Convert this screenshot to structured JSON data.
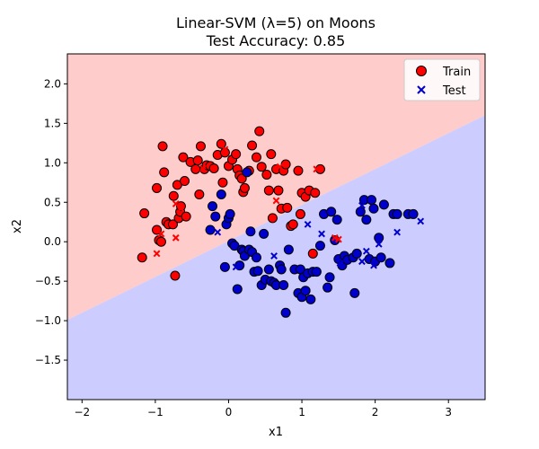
{
  "chart_data": {
    "type": "scatter",
    "title_line1": "Linear-SVM (λ=5) on Moons",
    "title_line2": "Test Accuracy: 0.85",
    "xlabel": "x1",
    "ylabel": "x2",
    "xlim": [
      -2.2,
      3.5
    ],
    "ylim": [
      -2.0,
      2.38
    ],
    "xticks": [
      -2,
      -1,
      0,
      1,
      2,
      3
    ],
    "yticks": [
      -1.5,
      -1.0,
      -0.5,
      0.0,
      0.5,
      1.0,
      1.5,
      2.0
    ],
    "xtick_labels": [
      "−2",
      "−1",
      "0",
      "1",
      "2",
      "3"
    ],
    "ytick_labels": [
      "−1.5",
      "−1.0",
      "−0.5",
      "0.0",
      "0.5",
      "1.0",
      "1.5",
      "2.0"
    ],
    "decision_boundary": {
      "slope": 0.455,
      "intercept": 0.01
    },
    "region_colors": {
      "class0": "#ffcccc",
      "class1": "#ccccff"
    },
    "grid": false,
    "legend": {
      "placement": "top-right",
      "entries": [
        {
          "label": "Train",
          "marker": "circle"
        },
        {
          "label": "Test",
          "marker": "x"
        }
      ]
    },
    "series": [
      {
        "name": "Train",
        "marker": "circle",
        "class0_color": "#ff0000",
        "class1_color": "#0000cc",
        "points": [
          {
            "x": -1.18,
            "y": -0.2,
            "c": 0
          },
          {
            "x": -1.15,
            "y": 0.36,
            "c": 0
          },
          {
            "x": -0.98,
            "y": 0.68,
            "c": 0
          },
          {
            "x": -0.98,
            "y": 0.15,
            "c": 0
          },
          {
            "x": -0.95,
            "y": 0.02,
            "c": 0
          },
          {
            "x": -0.92,
            "y": 0.0,
            "c": 0
          },
          {
            "x": -0.9,
            "y": 1.21,
            "c": 0
          },
          {
            "x": -0.88,
            "y": 0.88,
            "c": 0
          },
          {
            "x": -0.85,
            "y": 0.25,
            "c": 0
          },
          {
            "x": -0.82,
            "y": 0.22,
            "c": 0
          },
          {
            "x": -0.76,
            "y": 0.22,
            "c": 0
          },
          {
            "x": -0.75,
            "y": 0.58,
            "c": 0
          },
          {
            "x": -0.73,
            "y": -0.43,
            "c": 0
          },
          {
            "x": -0.7,
            "y": 0.72,
            "c": 0
          },
          {
            "x": -0.68,
            "y": 0.3,
            "c": 0
          },
          {
            "x": -0.66,
            "y": 0.38,
            "c": 0
          },
          {
            "x": -0.65,
            "y": 0.45,
            "c": 0
          },
          {
            "x": -0.62,
            "y": 1.07,
            "c": 0
          },
          {
            "x": -0.6,
            "y": 0.77,
            "c": 0
          },
          {
            "x": -0.58,
            "y": 0.32,
            "c": 0
          },
          {
            "x": -0.52,
            "y": 1.01,
            "c": 0
          },
          {
            "x": -0.45,
            "y": 0.92,
            "c": 0
          },
          {
            "x": -0.42,
            "y": 1.03,
            "c": 0
          },
          {
            "x": -0.4,
            "y": 0.6,
            "c": 0
          },
          {
            "x": -0.38,
            "y": 1.21,
            "c": 0
          },
          {
            "x": -0.33,
            "y": 0.92,
            "c": 0
          },
          {
            "x": -0.3,
            "y": 0.97,
            "c": 0
          },
          {
            "x": -0.25,
            "y": 0.96,
            "c": 0
          },
          {
            "x": -0.2,
            "y": 0.93,
            "c": 0
          },
          {
            "x": -0.15,
            "y": 1.1,
            "c": 0
          },
          {
            "x": -0.1,
            "y": 1.24,
            "c": 0
          },
          {
            "x": -0.08,
            "y": 0.75,
            "c": 0
          },
          {
            "x": -0.05,
            "y": 1.13,
            "c": 0
          },
          {
            "x": 0.0,
            "y": 0.96,
            "c": 0
          },
          {
            "x": 0.05,
            "y": 1.04,
            "c": 0
          },
          {
            "x": 0.1,
            "y": 1.11,
            "c": 0
          },
          {
            "x": 0.12,
            "y": 0.92,
            "c": 0
          },
          {
            "x": 0.15,
            "y": 0.84,
            "c": 0
          },
          {
            "x": 0.18,
            "y": 0.8,
            "c": 0
          },
          {
            "x": 0.2,
            "y": 0.63,
            "c": 0
          },
          {
            "x": 0.22,
            "y": 0.68,
            "c": 0
          },
          {
            "x": 0.28,
            "y": 0.9,
            "c": 0
          },
          {
            "x": 0.32,
            "y": 1.22,
            "c": 0
          },
          {
            "x": 0.38,
            "y": 1.07,
            "c": 0
          },
          {
            "x": 0.42,
            "y": 1.4,
            "c": 0
          },
          {
            "x": 0.45,
            "y": 0.95,
            "c": 0
          },
          {
            "x": 0.52,
            "y": 0.85,
            "c": 0
          },
          {
            "x": 0.55,
            "y": 0.65,
            "c": 0
          },
          {
            "x": 0.58,
            "y": 1.11,
            "c": 0
          },
          {
            "x": 0.6,
            "y": 0.3,
            "c": 0
          },
          {
            "x": 0.65,
            "y": 0.92,
            "c": 0
          },
          {
            "x": 0.68,
            "y": 0.65,
            "c": 0
          },
          {
            "x": 0.72,
            "y": 0.42,
            "c": 0
          },
          {
            "x": 0.75,
            "y": 0.9,
            "c": 0
          },
          {
            "x": 0.78,
            "y": 0.98,
            "c": 0
          },
          {
            "x": 0.8,
            "y": 0.43,
            "c": 0
          },
          {
            "x": 0.85,
            "y": 0.2,
            "c": 0
          },
          {
            "x": 0.88,
            "y": 0.22,
            "c": 0
          },
          {
            "x": 0.95,
            "y": 0.9,
            "c": 0
          },
          {
            "x": 0.98,
            "y": 0.35,
            "c": 0
          },
          {
            "x": 1.0,
            "y": 0.62,
            "c": 0
          },
          {
            "x": 1.05,
            "y": 0.57,
            "c": 0
          },
          {
            "x": 1.1,
            "y": 0.65,
            "c": 0
          },
          {
            "x": 1.15,
            "y": -0.15,
            "c": 0
          },
          {
            "x": 1.18,
            "y": 0.62,
            "c": 0
          },
          {
            "x": 1.25,
            "y": 0.92,
            "c": 0
          },
          {
            "x": -0.25,
            "y": 0.15,
            "c": 1
          },
          {
            "x": -0.22,
            "y": 0.45,
            "c": 1
          },
          {
            "x": -0.18,
            "y": 0.32,
            "c": 1
          },
          {
            "x": -0.1,
            "y": 0.6,
            "c": 1
          },
          {
            "x": -0.05,
            "y": -0.32,
            "c": 1
          },
          {
            "x": -0.03,
            "y": 0.22,
            "c": 1
          },
          {
            "x": 0.0,
            "y": 0.3,
            "c": 1
          },
          {
            "x": 0.02,
            "y": 0.35,
            "c": 1
          },
          {
            "x": 0.05,
            "y": -0.02,
            "c": 1
          },
          {
            "x": 0.08,
            "y": -0.05,
            "c": 1
          },
          {
            "x": 0.12,
            "y": -0.6,
            "c": 1
          },
          {
            "x": 0.15,
            "y": -0.3,
            "c": 1
          },
          {
            "x": 0.18,
            "y": -0.1,
            "c": 1
          },
          {
            "x": 0.2,
            "y": -0.12,
            "c": 1
          },
          {
            "x": 0.22,
            "y": -0.18,
            "c": 1
          },
          {
            "x": 0.25,
            "y": 0.88,
            "c": 1
          },
          {
            "x": 0.28,
            "y": -0.1,
            "c": 1
          },
          {
            "x": 0.3,
            "y": 0.13,
            "c": 1
          },
          {
            "x": 0.32,
            "y": -0.13,
            "c": 1
          },
          {
            "x": 0.35,
            "y": -0.38,
            "c": 1
          },
          {
            "x": 0.38,
            "y": -0.2,
            "c": 1
          },
          {
            "x": 0.4,
            "y": -0.37,
            "c": 1
          },
          {
            "x": 0.45,
            "y": -0.55,
            "c": 1
          },
          {
            "x": 0.48,
            "y": 0.1,
            "c": 1
          },
          {
            "x": 0.5,
            "y": -0.48,
            "c": 1
          },
          {
            "x": 0.55,
            "y": -0.35,
            "c": 1
          },
          {
            "x": 0.58,
            "y": -0.5,
            "c": 1
          },
          {
            "x": 0.62,
            "y": -0.52,
            "c": 1
          },
          {
            "x": 0.65,
            "y": -0.55,
            "c": 1
          },
          {
            "x": 0.7,
            "y": -0.3,
            "c": 1
          },
          {
            "x": 0.72,
            "y": -0.35,
            "c": 1
          },
          {
            "x": 0.75,
            "y": -0.55,
            "c": 1
          },
          {
            "x": 0.78,
            "y": -0.9,
            "c": 1
          },
          {
            "x": 0.82,
            "y": -0.1,
            "c": 1
          },
          {
            "x": 0.9,
            "y": -0.35,
            "c": 1
          },
          {
            "x": 0.95,
            "y": -0.65,
            "c": 1
          },
          {
            "x": 0.98,
            "y": -0.35,
            "c": 1
          },
          {
            "x": 1.0,
            "y": -0.7,
            "c": 1
          },
          {
            "x": 1.02,
            "y": -0.45,
            "c": 1
          },
          {
            "x": 1.05,
            "y": -0.62,
            "c": 1
          },
          {
            "x": 1.08,
            "y": -0.4,
            "c": 1
          },
          {
            "x": 1.12,
            "y": -0.73,
            "c": 1
          },
          {
            "x": 1.15,
            "y": -0.38,
            "c": 1
          },
          {
            "x": 1.2,
            "y": -0.38,
            "c": 1
          },
          {
            "x": 1.25,
            "y": -0.05,
            "c": 1
          },
          {
            "x": 1.3,
            "y": 0.35,
            "c": 1
          },
          {
            "x": 1.35,
            "y": -0.58,
            "c": 1
          },
          {
            "x": 1.38,
            "y": -0.45,
            "c": 1
          },
          {
            "x": 1.4,
            "y": 0.38,
            "c": 1
          },
          {
            "x": 1.45,
            "y": 0.02,
            "c": 1
          },
          {
            "x": 1.48,
            "y": 0.28,
            "c": 1
          },
          {
            "x": 1.5,
            "y": -0.22,
            "c": 1
          },
          {
            "x": 1.55,
            "y": -0.3,
            "c": 1
          },
          {
            "x": 1.58,
            "y": -0.18,
            "c": 1
          },
          {
            "x": 1.62,
            "y": -0.23,
            "c": 1
          },
          {
            "x": 1.7,
            "y": -0.2,
            "c": 1
          },
          {
            "x": 1.72,
            "y": -0.65,
            "c": 1
          },
          {
            "x": 1.75,
            "y": -0.15,
            "c": 1
          },
          {
            "x": 1.8,
            "y": 0.38,
            "c": 1
          },
          {
            "x": 1.85,
            "y": 0.53,
            "c": 1
          },
          {
            "x": 1.88,
            "y": 0.28,
            "c": 1
          },
          {
            "x": 1.92,
            "y": -0.22,
            "c": 1
          },
          {
            "x": 1.95,
            "y": 0.53,
            "c": 1
          },
          {
            "x": 1.98,
            "y": 0.42,
            "c": 1
          },
          {
            "x": 2.0,
            "y": -0.25,
            "c": 1
          },
          {
            "x": 2.05,
            "y": 0.05,
            "c": 1
          },
          {
            "x": 2.08,
            "y": -0.2,
            "c": 1
          },
          {
            "x": 2.12,
            "y": 0.47,
            "c": 1
          },
          {
            "x": 2.2,
            "y": -0.27,
            "c": 1
          },
          {
            "x": 2.25,
            "y": 0.35,
            "c": 1
          },
          {
            "x": 2.3,
            "y": 0.35,
            "c": 1
          },
          {
            "x": 2.45,
            "y": 0.35,
            "c": 1
          },
          {
            "x": 2.52,
            "y": 0.35,
            "c": 1
          }
        ]
      },
      {
        "name": "Test",
        "marker": "x",
        "class0_color": "#ff0000",
        "class1_color": "#0000cc",
        "points": [
          {
            "x": -0.98,
            "y": -0.15,
            "c": 0
          },
          {
            "x": -0.92,
            "y": 0.1,
            "c": 0
          },
          {
            "x": -0.72,
            "y": 0.05,
            "c": 0
          },
          {
            "x": -0.72,
            "y": 0.48,
            "c": 0
          },
          {
            "x": -0.65,
            "y": 0.42,
            "c": 0
          },
          {
            "x": -0.35,
            "y": 0.93,
            "c": 0
          },
          {
            "x": -0.05,
            "y": 1.17,
            "c": 0
          },
          {
            "x": 0.65,
            "y": 0.52,
            "c": 0
          },
          {
            "x": 0.7,
            "y": 0.95,
            "c": 0
          },
          {
            "x": 1.2,
            "y": 0.92,
            "c": 0
          },
          {
            "x": 1.45,
            "y": 0.05,
            "c": 0
          },
          {
            "x": 1.5,
            "y": 0.03,
            "c": 0
          },
          {
            "x": -0.25,
            "y": 0.15,
            "c": 1
          },
          {
            "x": -0.15,
            "y": 0.12,
            "c": 1
          },
          {
            "x": 0.1,
            "y": -0.32,
            "c": 1
          },
          {
            "x": 0.62,
            "y": -0.18,
            "c": 1
          },
          {
            "x": 1.08,
            "y": 0.22,
            "c": 1
          },
          {
            "x": 1.27,
            "y": 0.1,
            "c": 1
          },
          {
            "x": 1.52,
            "y": -0.27,
            "c": 1
          },
          {
            "x": 1.82,
            "y": -0.25,
            "c": 1
          },
          {
            "x": 1.82,
            "y": 0.46,
            "c": 1
          },
          {
            "x": 1.88,
            "y": -0.12,
            "c": 1
          },
          {
            "x": 1.98,
            "y": -0.3,
            "c": 1
          },
          {
            "x": 2.05,
            "y": -0.03,
            "c": 1
          },
          {
            "x": 2.3,
            "y": 0.12,
            "c": 1
          },
          {
            "x": 2.62,
            "y": 0.26,
            "c": 1
          }
        ]
      }
    ]
  }
}
